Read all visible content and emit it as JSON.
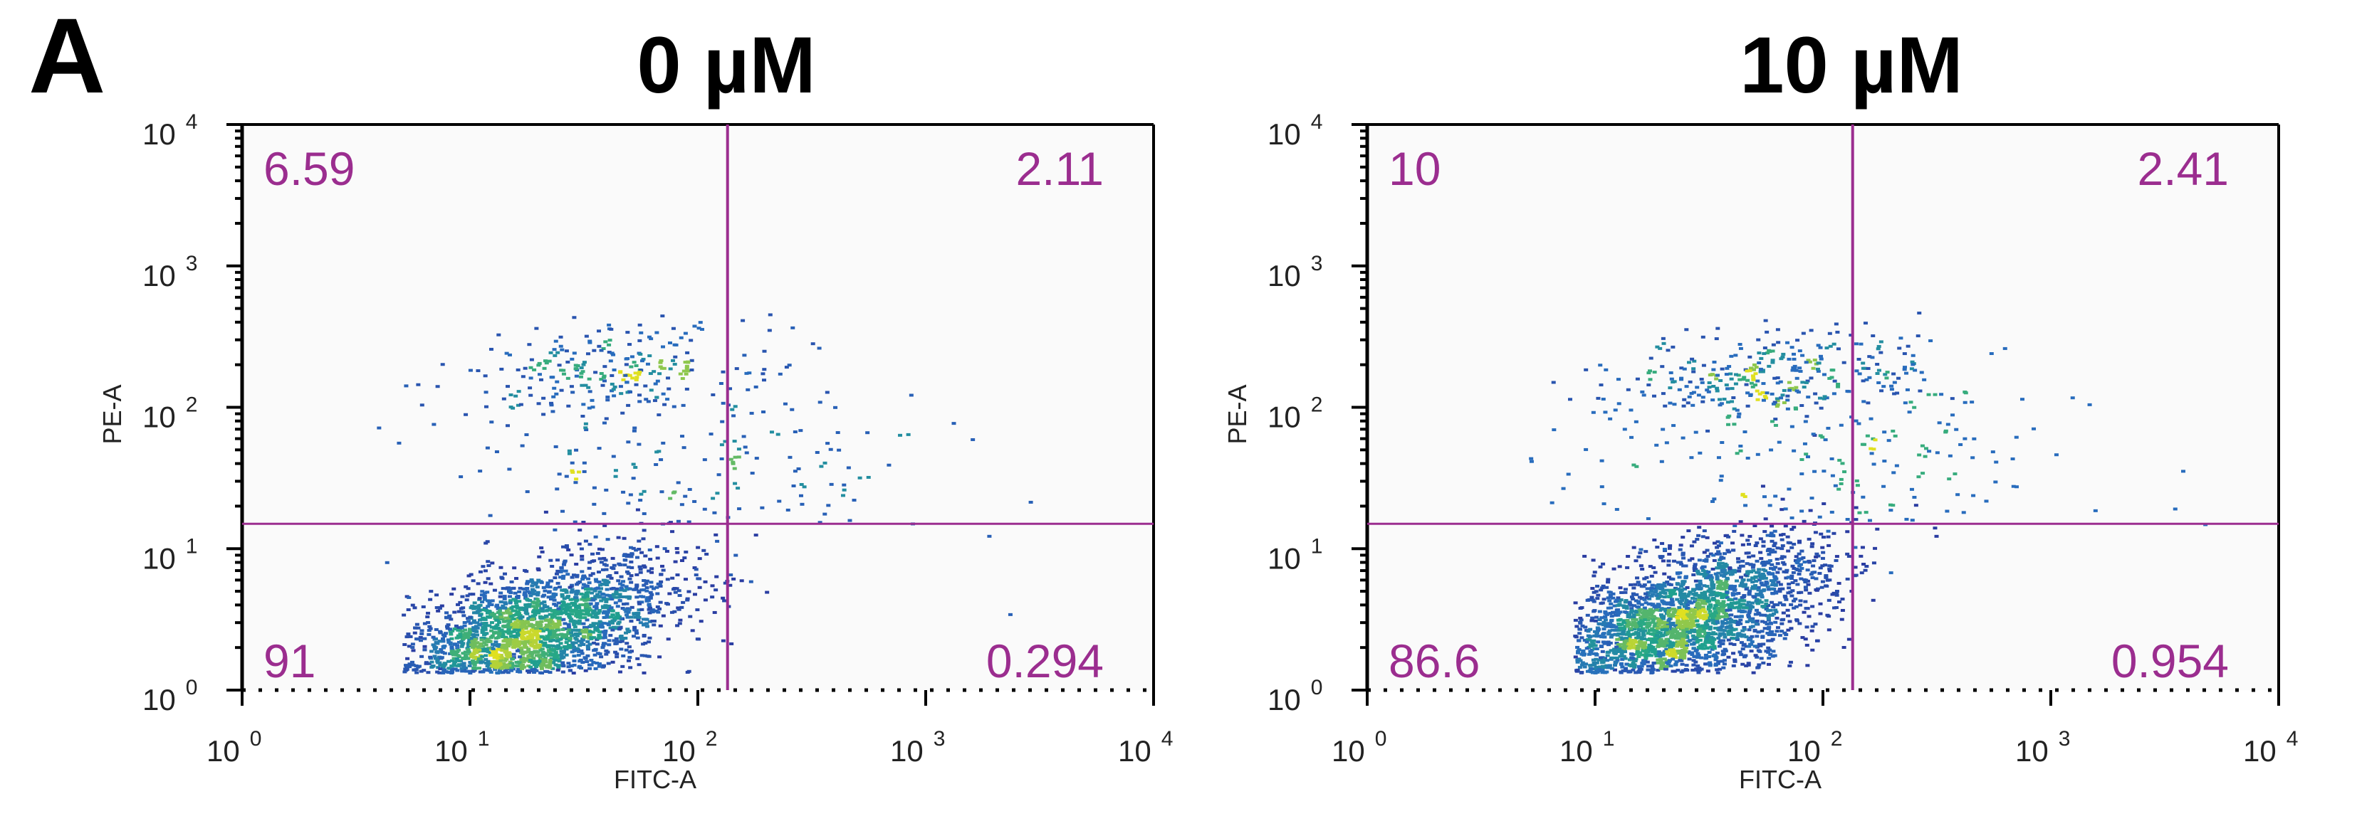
{
  "panel_letter": "A",
  "colors": {
    "gate": "#9b2d8f",
    "quadrant_text": "#9b2d8f",
    "plot_bg": "#fafafa",
    "density_low": "#2a2f9a",
    "density_mid": "#1fa58a",
    "density_high": "#e0e020"
  },
  "chart_data": [
    {
      "type": "scatter",
      "title": "0 µM",
      "xlabel": "FITC-A",
      "ylabel": "PE-A",
      "xscale": "log",
      "yscale": "log",
      "xlim": [
        1,
        10000
      ],
      "ylim": [
        1,
        10000
      ],
      "x_ticks": [
        {
          "base": "10",
          "exp": "0"
        },
        {
          "base": "10",
          "exp": "1"
        },
        {
          "base": "10",
          "exp": "2"
        },
        {
          "base": "10",
          "exp": "3"
        },
        {
          "base": "10",
          "exp": "4"
        }
      ],
      "y_ticks": [
        {
          "base": "10",
          "exp": "0"
        },
        {
          "base": "10",
          "exp": "1"
        },
        {
          "base": "10",
          "exp": "2"
        },
        {
          "base": "10",
          "exp": "3"
        },
        {
          "base": "10",
          "exp": "4"
        }
      ],
      "gates": {
        "x": 135,
        "y": 15
      },
      "quadrants": {
        "top_left": "6.59",
        "top_right": "2.11",
        "bottom_left": "91",
        "bottom_right": "0.294"
      },
      "populations": [
        {
          "x": 16,
          "y": 2.2,
          "sx": 0.33,
          "sy": 0.24,
          "n": 2900,
          "rot": 0.55,
          "xmin": 5
        },
        {
          "x": 40,
          "y": 190,
          "sx": 0.3,
          "sy": 0.15,
          "n": 240,
          "rot": 0.1
        },
        {
          "x": 90,
          "y": 40,
          "sx": 0.55,
          "sy": 0.35,
          "n": 200,
          "rot": 0
        }
      ]
    },
    {
      "type": "scatter",
      "title": "10 µM",
      "xlabel": "FITC-A",
      "ylabel": "PE-A",
      "xscale": "log",
      "yscale": "log",
      "xlim": [
        1,
        10000
      ],
      "ylim": [
        1,
        10000
      ],
      "x_ticks": [
        {
          "base": "10",
          "exp": "0"
        },
        {
          "base": "10",
          "exp": "1"
        },
        {
          "base": "10",
          "exp": "2"
        },
        {
          "base": "10",
          "exp": "3"
        },
        {
          "base": "10",
          "exp": "4"
        }
      ],
      "y_ticks": [
        {
          "base": "10",
          "exp": "0"
        },
        {
          "base": "10",
          "exp": "1"
        },
        {
          "base": "10",
          "exp": "2"
        },
        {
          "base": "10",
          "exp": "3"
        },
        {
          "base": "10",
          "exp": "4"
        }
      ],
      "gates": {
        "x": 135,
        "y": 15
      },
      "quadrants": {
        "top_left": "10",
        "top_right": "2.41",
        "bottom_left": "86.6",
        "bottom_right": "0.954"
      },
      "populations": [
        {
          "x": 22,
          "y": 2.8,
          "sx": 0.32,
          "sy": 0.24,
          "n": 2900,
          "rot": 0.55,
          "xmin": 8
        },
        {
          "x": 60,
          "y": 180,
          "sx": 0.33,
          "sy": 0.15,
          "n": 300,
          "rot": 0.1
        },
        {
          "x": 100,
          "y": 45,
          "sx": 0.55,
          "sy": 0.35,
          "n": 220,
          "rot": 0
        }
      ]
    }
  ]
}
